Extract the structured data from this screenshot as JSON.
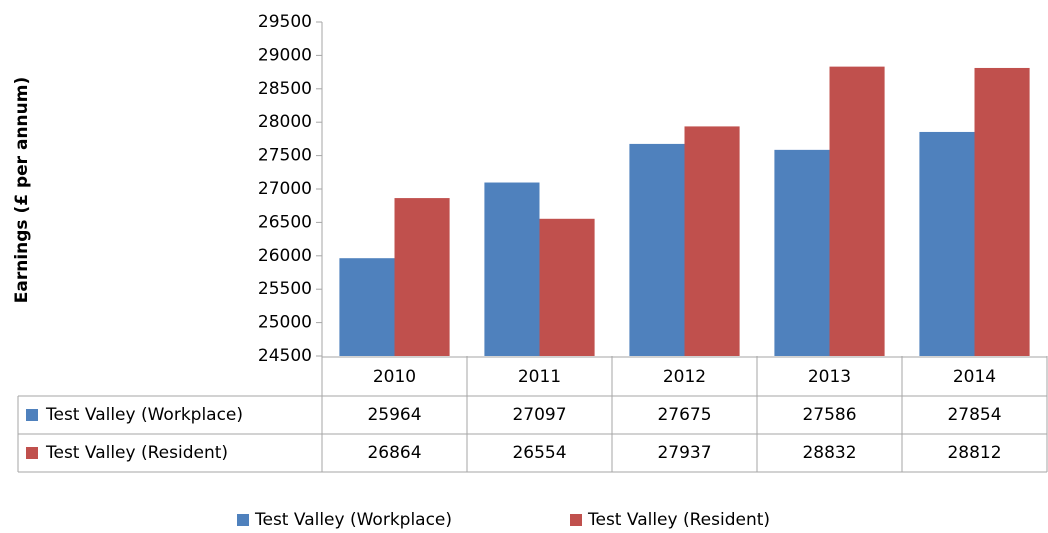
{
  "chart_data": {
    "type": "bar",
    "y_label": "Earnings (£ per annum)",
    "categories": [
      "2010",
      "2011",
      "2012",
      "2013",
      "2014"
    ],
    "series": [
      {
        "name": "Test Valley (Workplace)",
        "color": "#4f81bd",
        "values": [
          25964,
          27097,
          27675,
          27586,
          27854
        ]
      },
      {
        "name": "Test Valley (Resident)",
        "color": "#c0504d",
        "values": [
          26864,
          26554,
          27937,
          28832,
          28812
        ]
      }
    ],
    "ylim": [
      24500,
      29500
    ],
    "yticks": [
      24500,
      25000,
      25500,
      26000,
      26500,
      27000,
      27500,
      28000,
      28500,
      29000,
      29500
    ],
    "grid": false,
    "legend": "bottom"
  }
}
